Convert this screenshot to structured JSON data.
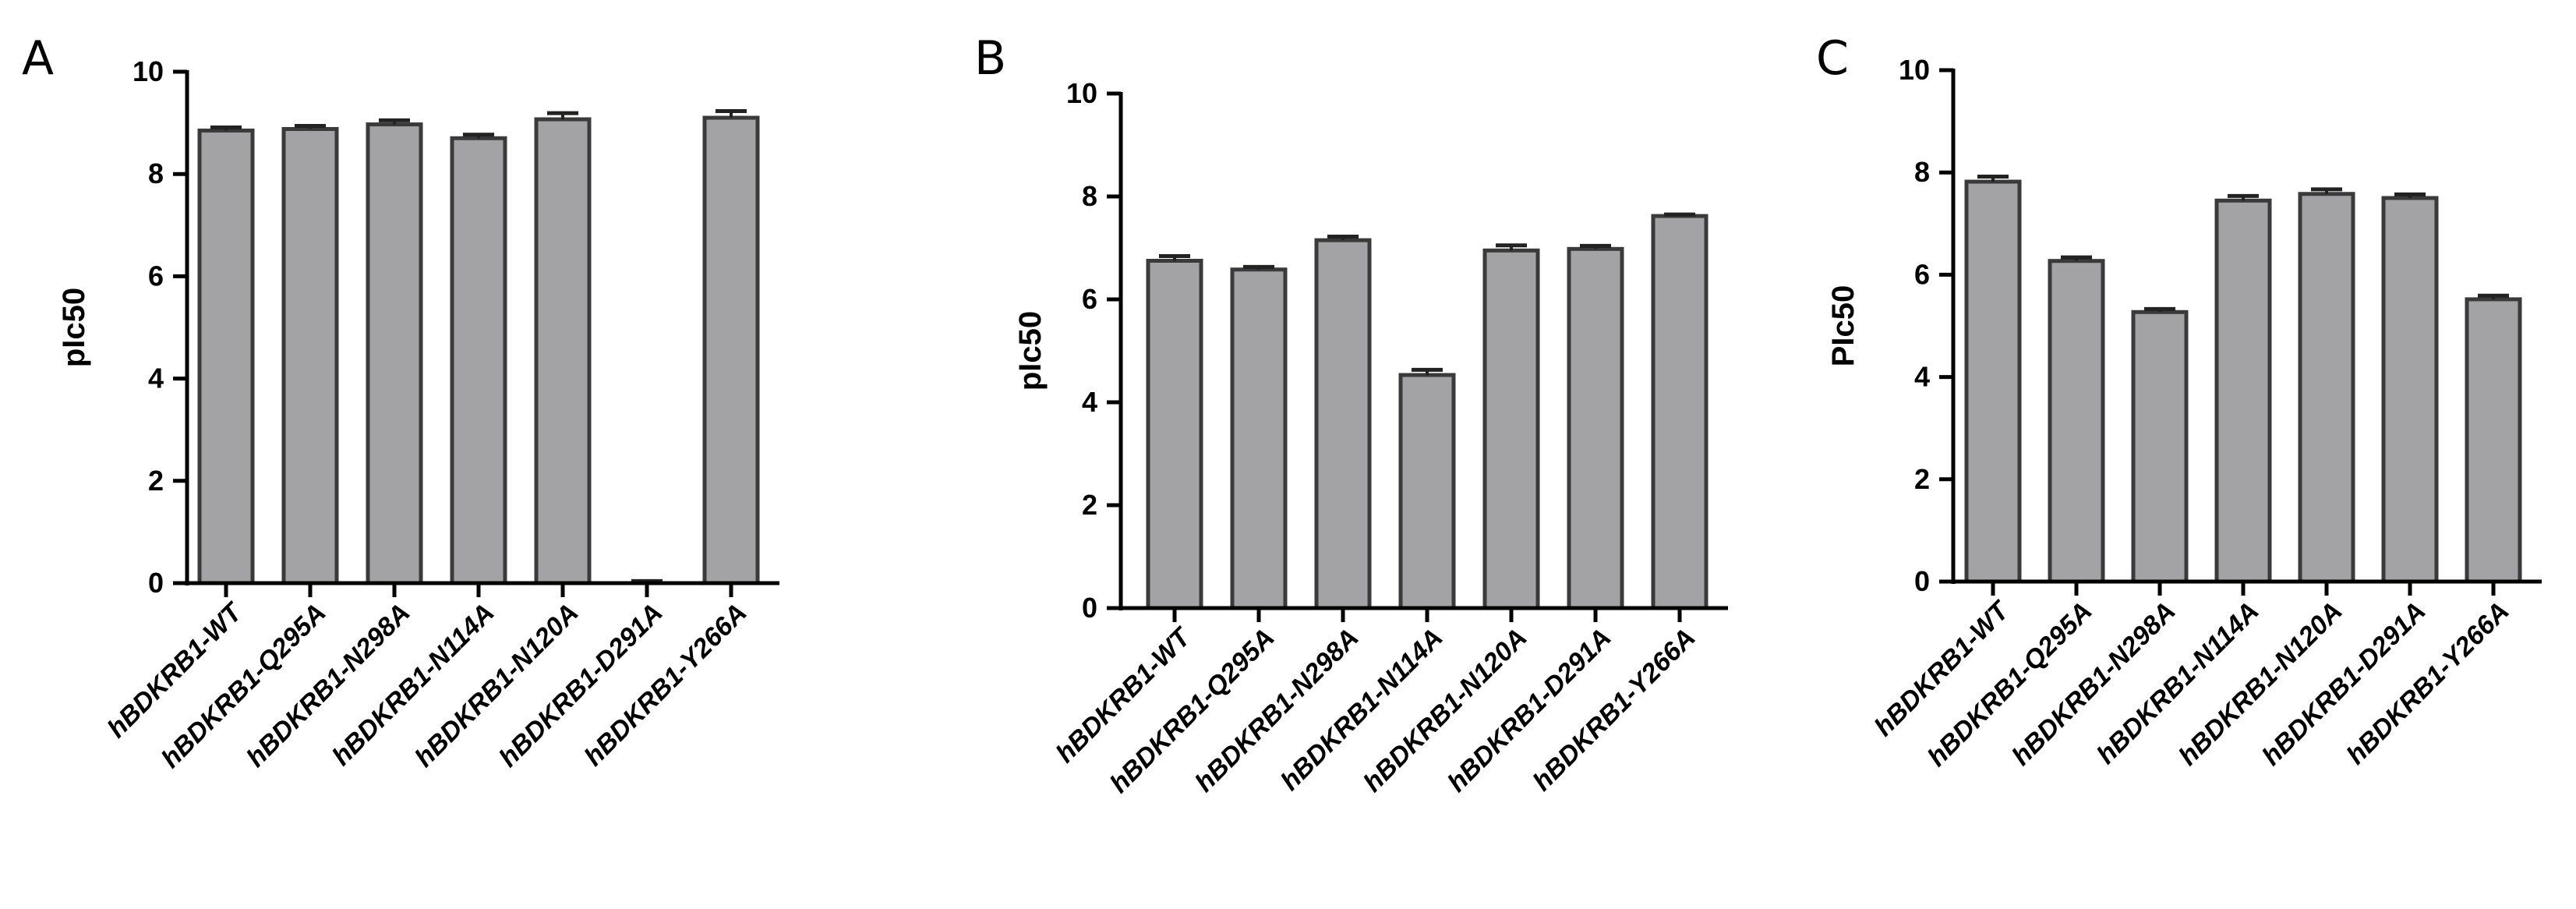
{
  "chart_data": [
    {
      "type": "bar",
      "panel_label": "A",
      "ylabel": "pIc50",
      "ylim": [
        0,
        10
      ],
      "yticks": [
        "0",
        "2",
        "4",
        "6",
        "8",
        "10"
      ],
      "categories": [
        "hBDKRB1-WT",
        "hBDKRB1-Q295A",
        "hBDKRB1-N298A",
        "hBDKRB1-N114A",
        "hBDKRB1-N120A",
        "hBDKRB1-D291A",
        "hBDKRB1-Y266A"
      ],
      "values": [
        8.85,
        8.88,
        8.97,
        8.7,
        9.07,
        0.0,
        9.1
      ],
      "errors": [
        0.06,
        0.06,
        0.08,
        0.07,
        0.12,
        0.04,
        0.13
      ],
      "grid": false,
      "bar_color": "#a3a3a6"
    },
    {
      "type": "bar",
      "panel_label": "B",
      "ylabel": "pIc50",
      "ylim": [
        0,
        10
      ],
      "yticks": [
        "0",
        "2",
        "4",
        "6",
        "8",
        "10"
      ],
      "categories": [
        "hBDKRB1-WT",
        "hBDKRB1-Q295A",
        "hBDKRB1-N298A",
        "hBDKRB1-N114A",
        "hBDKRB1-N120A",
        "hBDKRB1-D291A",
        "hBDKRB1-Y266A"
      ],
      "values": [
        6.75,
        6.58,
        7.15,
        4.53,
        6.95,
        6.98,
        7.62
      ],
      "errors": [
        0.09,
        0.05,
        0.07,
        0.1,
        0.1,
        0.06,
        0.03
      ],
      "grid": false,
      "bar_color": "#a3a3a6"
    },
    {
      "type": "bar",
      "panel_label": "C",
      "ylabel": "PIc50",
      "ylim": [
        0,
        10
      ],
      "yticks": [
        "0",
        "2",
        "4",
        "6",
        "8",
        "10"
      ],
      "categories": [
        "hBDKRB1-WT",
        "hBDKRB1-Q295A",
        "hBDKRB1-N298A",
        "hBDKRB1-N114A",
        "hBDKRB1-N120A",
        "hBDKRB1-D291A",
        "hBDKRB1-Y266A"
      ],
      "values": [
        7.82,
        6.27,
        5.27,
        7.45,
        7.58,
        7.5,
        5.52
      ],
      "errors": [
        0.1,
        0.07,
        0.06,
        0.09,
        0.09,
        0.07,
        0.07
      ],
      "grid": false,
      "bar_color": "#a3a3a6"
    }
  ]
}
